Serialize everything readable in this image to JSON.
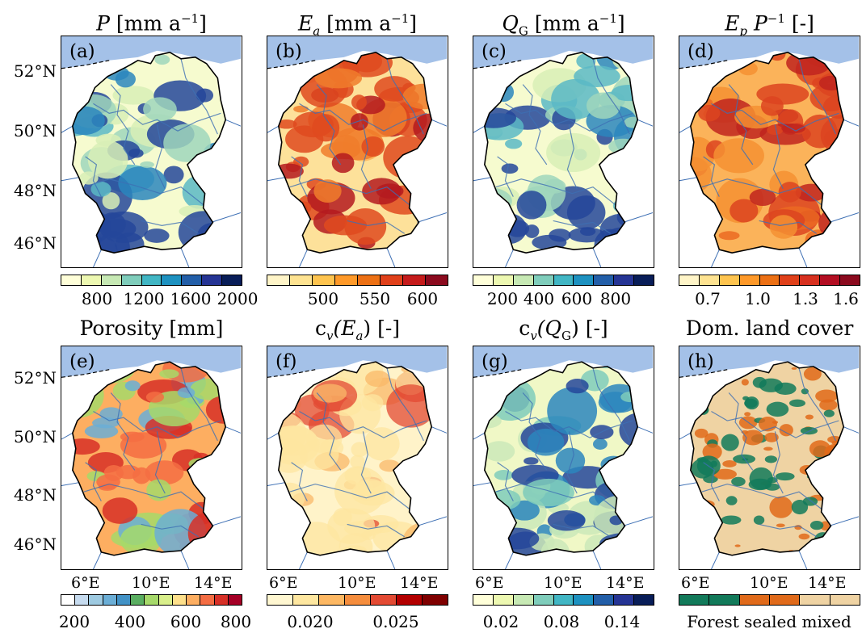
{
  "titles": {
    "a": {
      "sym": "P",
      "unit_pre": " [mm a",
      "exp": "−1",
      "unit_post": "]"
    },
    "b": {
      "sym": "E",
      "sub": "a",
      "unit_pre": " [mm a",
      "exp": "−1",
      "unit_post": "]"
    },
    "c": {
      "sym": "Q",
      "sub": "G",
      "unit_pre": " [mm a",
      "exp": "−1",
      "unit_post": "]"
    },
    "d": {
      "sym": "E",
      "sub": "p",
      "sym2": " P",
      "exp": "−1",
      "unit_post": " [-]"
    },
    "e": "Porosity [mm]",
    "f": {
      "pre": "c",
      "sub": "v",
      "paren": "(E",
      "psub": "a",
      "post": ") [-]"
    },
    "g": {
      "pre": "c",
      "sub": "v",
      "paren": "(Q",
      "psub": "G",
      "post": ") [-]"
    },
    "h": "Dom. land cover"
  },
  "panel_labels": [
    "(a)",
    "(b)",
    "(c)",
    "(d)",
    "(e)",
    "(f)",
    "(g)",
    "(h)"
  ],
  "lat_labels": [
    "52°N",
    "50°N",
    "48°N",
    "46°N"
  ],
  "lon_labels": [
    "6°E",
    "10°E",
    "14°E"
  ],
  "colorbars": {
    "a": {
      "ticks": [
        "800",
        "1200",
        "1600",
        "2000"
      ],
      "colors": [
        "#ffffd9",
        "#edf8b1",
        "#c7e9b4",
        "#7fcdbb",
        "#41b6c4",
        "#1d91c0",
        "#225ea8",
        "#253494",
        "#081d58"
      ]
    },
    "b": {
      "ticks": [
        "500",
        "550",
        "600"
      ],
      "colors": [
        "#fff5c8",
        "#fee391",
        "#fec44f",
        "#fe9929",
        "#ec7014",
        "#e0401a",
        "#c51b1b",
        "#8b0a1e"
      ]
    },
    "c": {
      "ticks": [
        "200",
        "400",
        "600",
        "800"
      ],
      "colors": [
        "#ffffd9",
        "#edf8b1",
        "#c7e9b4",
        "#7fcdbb",
        "#41b6c4",
        "#1d91c0",
        "#225ea8",
        "#253494",
        "#081d58"
      ]
    },
    "d": {
      "ticks": [
        "0.7",
        "1.0",
        "1.3",
        "1.6"
      ],
      "colors": [
        "#fff5c8",
        "#fee391",
        "#fec44f",
        "#fe9929",
        "#ec7014",
        "#e0401a",
        "#d7301f",
        "#b30e22",
        "#8b0a1e"
      ]
    },
    "e": {
      "ticks": [
        "200",
        "400",
        "600",
        "800"
      ],
      "colors": [
        "#ffffff",
        "#c6dbef",
        "#9ecae1",
        "#6baed6",
        "#4292c6",
        "#5aae61",
        "#a6d96a",
        "#d9ef8b",
        "#fee08b",
        "#fdae61",
        "#f46d43",
        "#d73027",
        "#a50026"
      ]
    },
    "f": {
      "ticks": [
        "0.020",
        "0.025"
      ],
      "colors": [
        "#fff7d1",
        "#fee7a0",
        "#fdb863",
        "#f58d3d",
        "#e34a33",
        "#b30000",
        "#7f0000"
      ]
    },
    "g": {
      "ticks": [
        "0.02",
        "0.08",
        "0.14"
      ],
      "colors": [
        "#ffffd9",
        "#edf8b1",
        "#c7e9b4",
        "#7fcdbb",
        "#41b6c4",
        "#1d91c0",
        "#225ea8",
        "#253494",
        "#081d58"
      ]
    },
    "h": {
      "ticks": [],
      "colors": [
        "#127a5a",
        "#127a5a",
        "#e06a1a",
        "#e06a1a",
        "#efd3a3",
        "#efd3a3"
      ]
    }
  },
  "landcover_legend": "Forest sealed mixed",
  "map_colors": {
    "sea": "#a4c1e8",
    "a": [
      "#f6fbcf",
      "#d8eeb6",
      "#9fd6bc",
      "#5bb8c6",
      "#2b86bd",
      "#24469a"
    ],
    "b": [
      "#fde19a",
      "#fbb35a",
      "#f07d2c",
      "#df4a1f",
      "#b41a1e"
    ],
    "c": [
      "#f6fbcf",
      "#d8eeb6",
      "#9fd6bc",
      "#5bb8c6",
      "#2b86bd",
      "#24469a"
    ],
    "d": [
      "#fbb35a",
      "#f49033",
      "#eb6a22",
      "#dc4420",
      "#c0251e"
    ],
    "e": [
      "#fdae61",
      "#f46d43",
      "#d73027",
      "#a6d96a",
      "#6baed6"
    ],
    "f": [
      "#fff3c9",
      "#fde5a0",
      "#f9b868",
      "#e34a33"
    ],
    "g": [
      "#f0f8c6",
      "#cbe9b9",
      "#7fcdbb",
      "#2b86bd",
      "#24469a"
    ],
    "h": [
      "#efd3a3",
      "#127a5a",
      "#e06a1a"
    ]
  }
}
